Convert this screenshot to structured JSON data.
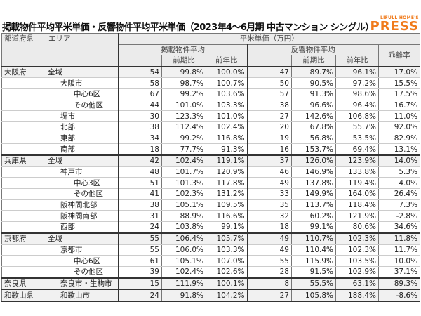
{
  "title": "掲載物件平均平米単価・反響物件平均平米単価（2023年4～6月期 中古マンション シングル）",
  "logo": {
    "top": "LIFULL HOME'S",
    "bottom": "PRESS",
    "color": "#f07a1a"
  },
  "header": {
    "col0": "都道府県　　エリア",
    "unit": "平米単価（万円）",
    "listed": "掲載物件平均",
    "response": "反響物件平均",
    "gap": "乖離率",
    "qoq": "前期比",
    "yoy": "前年比"
  },
  "rows": [
    {
      "pref": "大阪府",
      "area": "全域",
      "level": 0,
      "v": [
        "54",
        "99.8%",
        "100.0%",
        "47",
        "89.7%",
        "96.1%",
        "17.0%"
      ]
    },
    {
      "pref": "",
      "area": "大阪市",
      "level": 1,
      "v": [
        "58",
        "98.7%",
        "100.7%",
        "50",
        "90.5%",
        "97.2%",
        "15.5%"
      ]
    },
    {
      "pref": "",
      "area": "中心6区",
      "level": 2,
      "v": [
        "67",
        "99.2%",
        "103.6%",
        "57",
        "91.3%",
        "98.6%",
        "17.5%"
      ]
    },
    {
      "pref": "",
      "area": "その他区",
      "level": 2,
      "v": [
        "44",
        "101.0%",
        "103.3%",
        "38",
        "96.6%",
        "96.4%",
        "16.7%"
      ]
    },
    {
      "pref": "",
      "area": "堺市",
      "level": 1,
      "v": [
        "30",
        "123.3%",
        "101.0%",
        "27",
        "142.6%",
        "106.8%",
        "11.0%"
      ]
    },
    {
      "pref": "",
      "area": "北部",
      "level": 1,
      "v": [
        "38",
        "112.4%",
        "102.4%",
        "20",
        "67.8%",
        "55.7%",
        "92.0%"
      ]
    },
    {
      "pref": "",
      "area": "東部",
      "level": 1,
      "v": [
        "34",
        "99.2%",
        "116.8%",
        "19",
        "56.8%",
        "53.5%",
        "82.9%"
      ]
    },
    {
      "pref": "",
      "area": "南部",
      "level": 1,
      "v": [
        "18",
        "77.7%",
        "91.3%",
        "16",
        "153.7%",
        "69.4%",
        "13.1%"
      ]
    },
    {
      "pref": "兵庫県",
      "area": "全域",
      "level": 0,
      "v": [
        "42",
        "102.4%",
        "119.1%",
        "37",
        "126.0%",
        "123.9%",
        "14.0%"
      ]
    },
    {
      "pref": "",
      "area": "神戸市",
      "level": 1,
      "v": [
        "48",
        "101.7%",
        "120.9%",
        "46",
        "146.9%",
        "133.8%",
        "5.3%"
      ]
    },
    {
      "pref": "",
      "area": "中心3区",
      "level": 2,
      "v": [
        "51",
        "101.3%",
        "117.8%",
        "49",
        "137.8%",
        "119.4%",
        "4.0%"
      ]
    },
    {
      "pref": "",
      "area": "その他区",
      "level": 2,
      "v": [
        "41",
        "102.3%",
        "131.2%",
        "33",
        "149.9%",
        "164.0%",
        "26.4%"
      ]
    },
    {
      "pref": "",
      "area": "阪神間北部",
      "level": 1,
      "v": [
        "38",
        "105.1%",
        "109.5%",
        "35",
        "113.7%",
        "118.4%",
        "7.3%"
      ]
    },
    {
      "pref": "",
      "area": "阪神間南部",
      "level": 1,
      "v": [
        "31",
        "88.9%",
        "116.6%",
        "32",
        "60.2%",
        "121.9%",
        "-2.8%"
      ]
    },
    {
      "pref": "",
      "area": "西部",
      "level": 1,
      "v": [
        "24",
        "103.8%",
        "99.1%",
        "18",
        "99.1%",
        "80.6%",
        "34.6%"
      ]
    },
    {
      "pref": "京都府",
      "area": "全域",
      "level": 0,
      "v": [
        "55",
        "106.4%",
        "105.7%",
        "49",
        "110.7%",
        "102.3%",
        "11.8%"
      ]
    },
    {
      "pref": "",
      "area": "京都市",
      "level": 1,
      "v": [
        "55",
        "106.0%",
        "103.3%",
        "49",
        "110.4%",
        "102.3%",
        "11.7%"
      ]
    },
    {
      "pref": "",
      "area": "中心6区",
      "level": 2,
      "v": [
        "61",
        "105.1%",
        "107.0%",
        "55",
        "115.9%",
        "103.5%",
        "10.0%"
      ]
    },
    {
      "pref": "",
      "area": "その他区",
      "level": 2,
      "v": [
        "39",
        "102.4%",
        "102.6%",
        "28",
        "91.5%",
        "102.9%",
        "37.1%"
      ]
    },
    {
      "pref": "奈良県",
      "area": "奈良市・生駒市",
      "level": 1,
      "group": true,
      "v": [
        "15",
        "111.9%",
        "100.1%",
        "8",
        "55.5%",
        "63.1%",
        "89.3%"
      ]
    },
    {
      "pref": "和歌山県",
      "area": "和歌山市",
      "level": 1,
      "group": true,
      "v": [
        "24",
        "91.8%",
        "104.2%",
        "27",
        "105.8%",
        "188.4%",
        "-8.6%"
      ]
    }
  ]
}
